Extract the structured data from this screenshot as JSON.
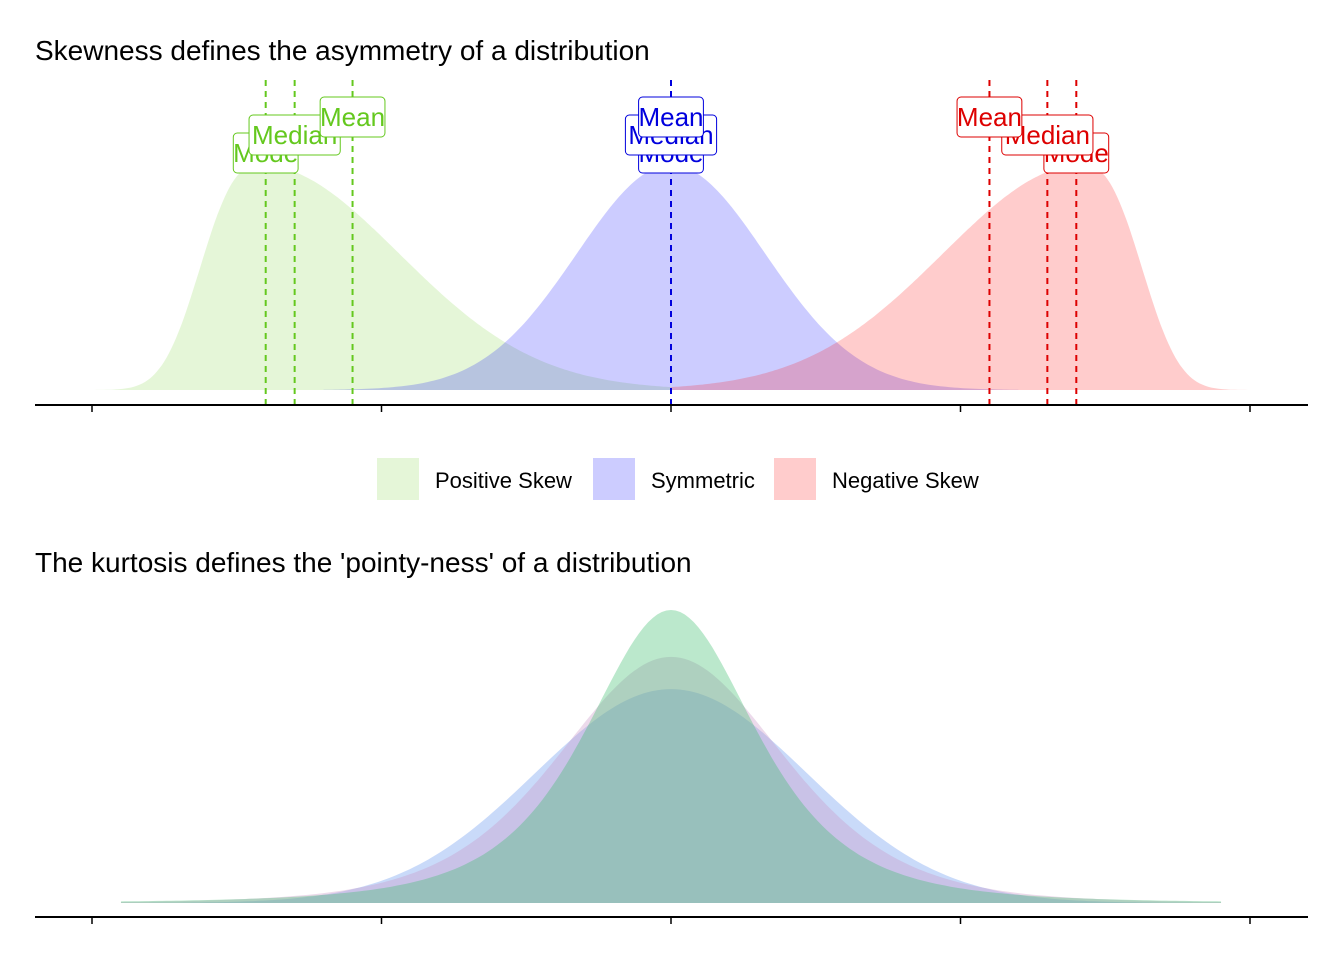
{
  "chart_data": [
    {
      "type": "area",
      "title": "Skewness defines the asymmetry of a distribution",
      "xlabel": "",
      "ylabel": "",
      "grid": false,
      "legend_position": "bottom",
      "legend": [
        {
          "label": "Positive Skew",
          "color": "#7fd13b"
        },
        {
          "label": "Symmetric",
          "color": "#0000ff"
        },
        {
          "label": "Negative Skew",
          "color": "#ff0000"
        }
      ],
      "x_ticks": [
        -10,
        -5,
        0,
        5,
        10
      ],
      "xlim": [
        -11,
        11
      ],
      "series": [
        {
          "name": "Positive Skew",
          "fill": "#7fd13b",
          "line": "#64c81e",
          "label_text_color": "#64c81e",
          "range": [
            -10,
            0
          ],
          "curve": {
            "mode": -7.1,
            "left_width": 1.25,
            "right_width": 3.4,
            "left_power": 2.6,
            "right_power": 2.0
          },
          "markers": [
            {
              "label": "Mode",
              "x": -7.0
            },
            {
              "label": "Median",
              "x": -6.5
            },
            {
              "label": "Mean",
              "x": -5.5
            }
          ]
        },
        {
          "name": "Symmetric",
          "fill": "#0000ff",
          "line": "#0000dd",
          "label_text_color": "#0000dd",
          "range": [
            -6,
            6
          ],
          "curve": {
            "mode": 0,
            "left_width": 2.3,
            "right_width": 2.3,
            "left_power": 2.0,
            "right_power": 2.0
          },
          "markers": [
            {
              "label": "Mode",
              "x": 0
            },
            {
              "label": "Median",
              "x": 0
            },
            {
              "label": "Mean",
              "x": 0
            }
          ]
        },
        {
          "name": "Negative Skew",
          "fill": "#ff0000",
          "line": "#dd0000",
          "label_text_color": "#dd0000",
          "range": [
            0,
            10
          ],
          "curve": {
            "mode": 7.1,
            "left_width": 3.4,
            "right_width": 1.25,
            "left_power": 2.0,
            "right_power": 2.6
          },
          "markers": [
            {
              "label": "Mean",
              "x": 5.5
            },
            {
              "label": "Median",
              "x": 6.5
            },
            {
              "label": "Mode",
              "x": 7.0
            }
          ]
        }
      ]
    },
    {
      "type": "area",
      "title": "The kurtosis defines the 'pointy-ness' of a distribution",
      "xlabel": "",
      "ylabel": "",
      "grid": false,
      "legend_position": "none",
      "x_ticks": [
        -10,
        -5,
        0,
        5,
        10
      ],
      "xlim": [
        -11,
        11
      ],
      "series": [
        {
          "fill": "#6495ed",
          "range": [
            -9.5,
            9.5
          ],
          "curve": {
            "peak": 0.73,
            "width": 2.35,
            "shape": "normal"
          }
        },
        {
          "fill": "#c994c7",
          "range": [
            -9.5,
            9.5
          ],
          "curve": {
            "peak": 0.84,
            "width": 2.0,
            "shape": "t"
          }
        },
        {
          "fill": "#3cbe6e",
          "range": [
            -9.5,
            9.5
          ],
          "curve": {
            "peak": 1.0,
            "width": 1.55,
            "shape": "t-heavy"
          }
        }
      ]
    }
  ]
}
